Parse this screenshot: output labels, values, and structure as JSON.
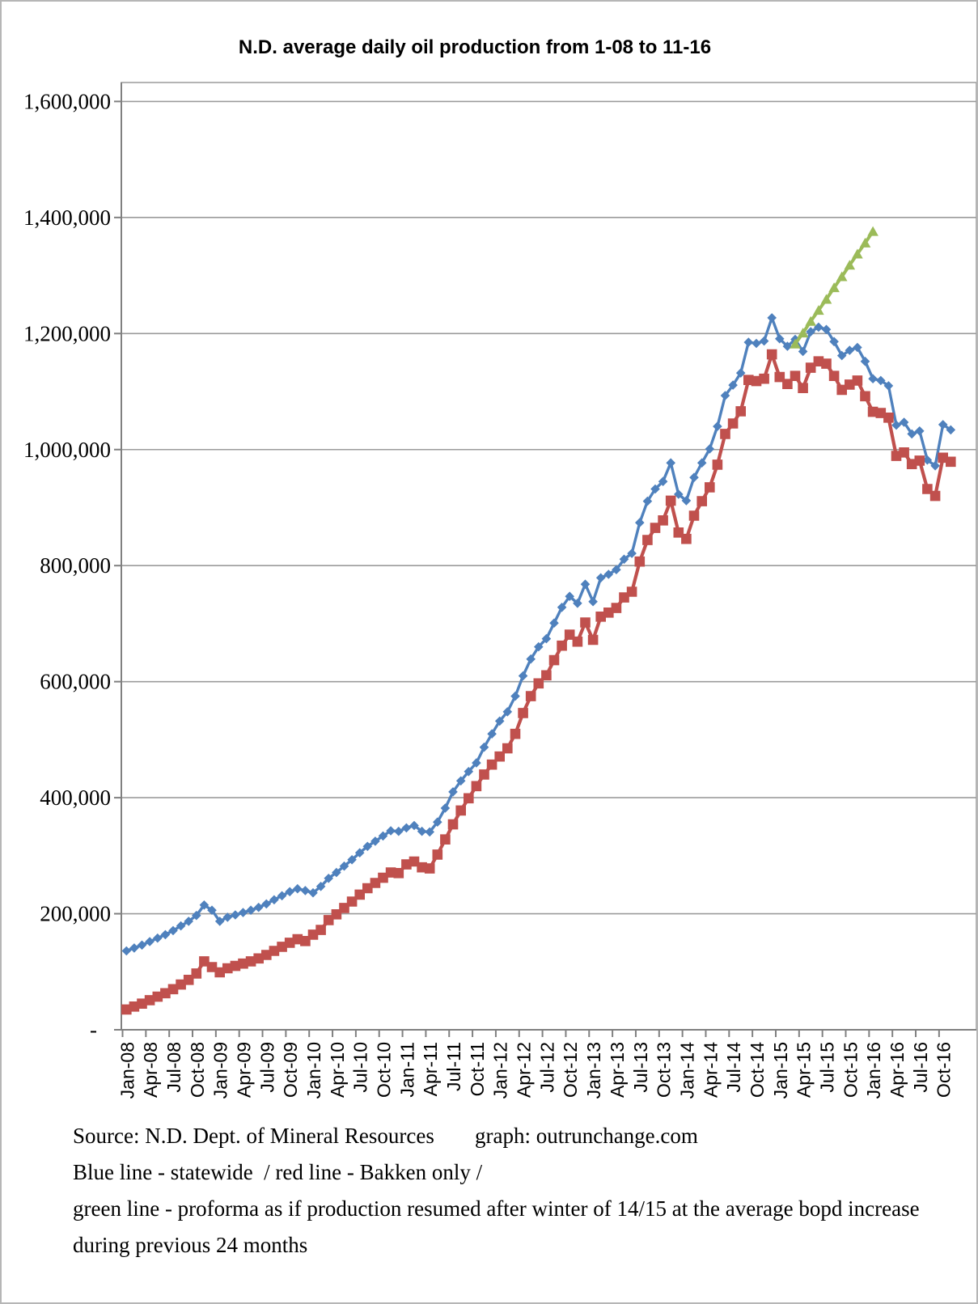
{
  "title": "N.D. average daily oil production from 1-08 to 11-16",
  "footer": {
    "source": "Source: N.D. Dept. of Mineral Resources",
    "credit": "graph: outrunchange.com",
    "legend_line": "Blue line - statewide  / red line - Bakken only /",
    "green_line_desc": "green line - proforma as if production resumed after winter of 14/15 at the average bopd increase",
    "green_line_desc2": "during previous 24 months"
  },
  "chart_data": {
    "type": "line",
    "title": "N.D. average daily oil production from 1-08 to 11-16",
    "x_unit": "month",
    "x_start_label": "Jan-08",
    "x_end_label": "Nov-16",
    "points_count": 107,
    "grid": "horizontal",
    "legend_position": "none",
    "ylim": [
      0,
      1600000
    ],
    "y_tick_step": 200000,
    "y_tick_labels": [
      "-",
      "200,000",
      "400,000",
      "600,000",
      "800,000",
      "1,000,000",
      "1,200,000",
      "1,400,000",
      "1,600,000"
    ],
    "x_tick_labels": [
      "Jan-08",
      "Apr-08",
      "Jul-08",
      "Oct-08",
      "Jan-09",
      "Apr-09",
      "Jul-09",
      "Oct-09",
      "Jan-10",
      "Apr-10",
      "Jul-10",
      "Oct-10",
      "Jan-11",
      "Apr-11",
      "Jul-11",
      "Oct-11",
      "Jan-12",
      "Apr-12",
      "Jul-12",
      "Oct-12",
      "Jan-13",
      "Apr-13",
      "Jul-13",
      "Oct-13",
      "Jan-14",
      "Apr-14",
      "Jul-14",
      "Oct-14",
      "Jan-15",
      "Apr-15",
      "Jul-15",
      "Oct-15",
      "Jan-16",
      "Apr-16",
      "Jul-16",
      "Oct-16"
    ],
    "x_tick_every_n_months": 3,
    "series": [
      {
        "name": "statewide",
        "color": "#4F81BD",
        "marker": "diamond",
        "start_index": 0,
        "values": [
          136000,
          141000,
          146000,
          152000,
          158000,
          164000,
          171000,
          179000,
          187000,
          197000,
          215000,
          206000,
          187000,
          194000,
          198000,
          202000,
          206000,
          211000,
          217000,
          224000,
          231000,
          238000,
          243000,
          240000,
          236000,
          247000,
          261000,
          271000,
          282000,
          293000,
          305000,
          316000,
          325000,
          334000,
          343000,
          342000,
          348000,
          352000,
          342000,
          341000,
          358000,
          382000,
          410000,
          429000,
          445000,
          460000,
          487000,
          510000,
          532000,
          548000,
          575000,
          610000,
          639000,
          660000,
          674000,
          701000,
          728000,
          747000,
          735000,
          768000,
          738000,
          779000,
          785000,
          793000,
          811000,
          821000,
          874000,
          911000,
          932000,
          945000,
          977000,
          923000,
          912000,
          952000,
          977000,
          1001000,
          1040000,
          1093000,
          1111000,
          1132000,
          1185000,
          1183000,
          1187000,
          1227000,
          1191000,
          1178000,
          1190000,
          1169000,
          1203000,
          1211000,
          1207000,
          1186000,
          1162000,
          1171000,
          1176000,
          1152000,
          1122000,
          1119000,
          1110000,
          1042000,
          1047000,
          1027000,
          1032000,
          982000,
          972000,
          1043000,
          1034000
        ]
      },
      {
        "name": "Bakken only",
        "color": "#C0504D",
        "marker": "square",
        "start_index": 0,
        "values": [
          35000,
          40000,
          45000,
          51000,
          57000,
          63000,
          70000,
          78000,
          86000,
          97000,
          118000,
          108000,
          99000,
          106000,
          110000,
          114000,
          118000,
          123000,
          129000,
          136000,
          143000,
          150000,
          156000,
          153000,
          164000,
          172000,
          189000,
          199000,
          210000,
          221000,
          233000,
          244000,
          253000,
          262000,
          271000,
          270000,
          285000,
          290000,
          280000,
          278000,
          302000,
          328000,
          354000,
          378000,
          399000,
          420000,
          440000,
          457000,
          471000,
          485000,
          510000,
          546000,
          575000,
          597000,
          611000,
          637000,
          662000,
          681000,
          669000,
          702000,
          672000,
          712000,
          719000,
          727000,
          745000,
          755000,
          807000,
          844000,
          865000,
          878000,
          912000,
          857000,
          846000,
          886000,
          911000,
          935000,
          974000,
          1027000,
          1045000,
          1066000,
          1120000,
          1118000,
          1122000,
          1164000,
          1125000,
          1113000,
          1127000,
          1106000,
          1141000,
          1152000,
          1148000,
          1127000,
          1103000,
          1112000,
          1119000,
          1092000,
          1065000,
          1063000,
          1055000,
          989000,
          995000,
          975000,
          981000,
          932000,
          920000,
          986000,
          979000
        ]
      },
      {
        "name": "proforma resumed growth after winter 14/15",
        "color": "#9BBB59",
        "marker": "triangle-up",
        "start_index": 86,
        "values": [
          1182000,
          1201000,
          1221000,
          1240000,
          1259000,
          1279000,
          1298000,
          1318000,
          1337000,
          1356000,
          1376000
        ]
      }
    ]
  }
}
